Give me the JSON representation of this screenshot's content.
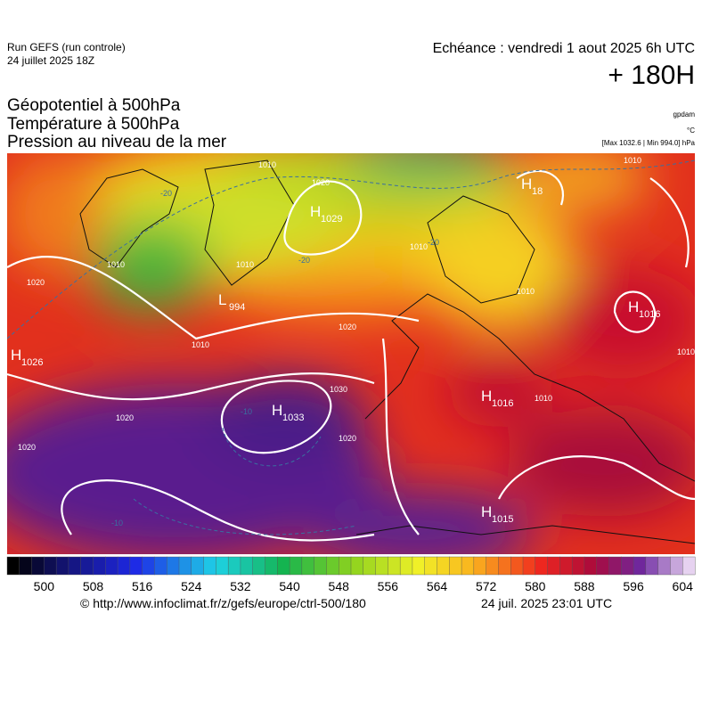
{
  "header": {
    "run": "Run GEFS (run controle)",
    "date": "24 juillet 2025 18Z",
    "valid": "Echéance : vendredi 1 aout 2025 6h UTC",
    "lead": "+ 180H"
  },
  "titles": [
    "Géopotentiel à 500hPa",
    "Température à 500hPa",
    "Pression au niveau de la mer"
  ],
  "units": [
    "gpdam",
    "°C",
    "[Max 1032.6 | Min 994.0] hPa"
  ],
  "centers": [
    {
      "symbol": "H",
      "value": "1029"
    },
    {
      "symbol": "H",
      "value": "1033"
    },
    {
      "symbol": "H",
      "value": "1016"
    },
    {
      "symbol": "H",
      "value": "1016"
    },
    {
      "symbol": "H",
      "value": "1015"
    },
    {
      "symbol": "H",
      "value": "1026"
    },
    {
      "symbol": "H",
      "value": "18"
    },
    {
      "symbol": "L",
      "value": "994"
    }
  ],
  "isobar_labels": [
    "1010",
    "1020",
    "1010",
    "1020",
    "1020",
    "1010",
    "1020",
    "1030",
    "1020",
    "1020",
    "1010",
    "1010",
    "1010",
    "1010",
    "1010",
    "1010"
  ],
  "temp_labels": [
    "-20",
    "-20",
    "-20",
    "-10",
    "-10"
  ],
  "colorbar_labels": [
    "500",
    "508",
    "516",
    "524",
    "532",
    "540",
    "548",
    "556",
    "564",
    "572",
    "580",
    "588",
    "596",
    "604"
  ],
  "footer": {
    "source": "© http://www.infoclimat.fr/z/gefs/europe/ctrl-500/180",
    "generated": "24 juil. 2025 23:01 UTC"
  }
}
